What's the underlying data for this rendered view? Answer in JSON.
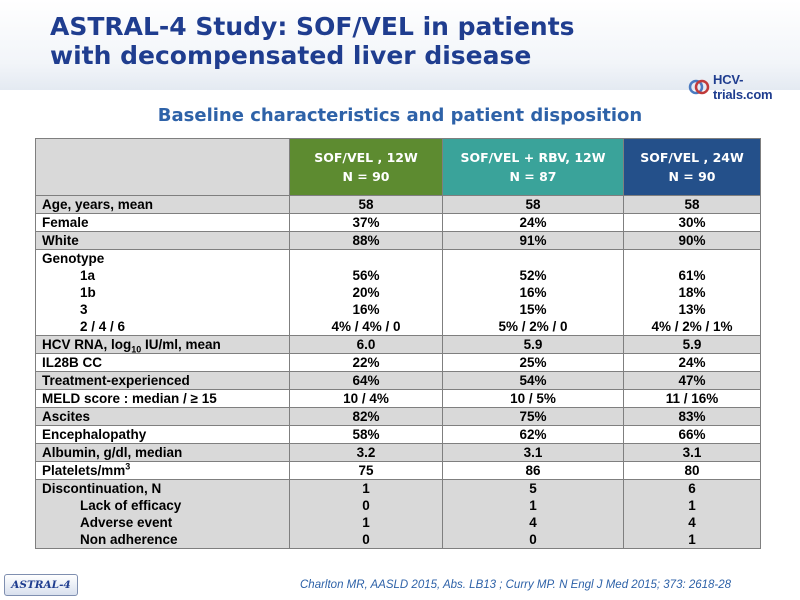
{
  "title": {
    "line1": "ASTRAL-4 Study: SOF/VEL in patients",
    "line2": "with decompensated liver disease"
  },
  "logo": {
    "text": "HCV-trials.com"
  },
  "subtitle": "Baseline characteristics and patient disposition",
  "table": {
    "headers": [
      {
        "line1": "SOF/VEL , 12W",
        "line2": "N = 90",
        "color": "#5d8b30"
      },
      {
        "line1": "SOF/VEL + RBV, 12W",
        "line2": "N = 87",
        "color": "#3aa39a"
      },
      {
        "line1": "SOF/VEL , 24W",
        "line2": "N = 90",
        "color": "#24508a"
      }
    ],
    "rows": {
      "age": {
        "label": "Age, years, mean",
        "values": [
          "58",
          "58",
          "58"
        ]
      },
      "female": {
        "label": "Female",
        "values": [
          "37%",
          "24%",
          "30%"
        ]
      },
      "white": {
        "label": "White",
        "values": [
          "88%",
          "91%",
          "90%"
        ]
      },
      "genotype": {
        "label": "Genotype",
        "sub": [
          "1a",
          "1b",
          "3",
          "2 / 4 / 6"
        ],
        "cols": [
          [
            "56%",
            "20%",
            "16%",
            "4% / 4% / 0"
          ],
          [
            "52%",
            "16%",
            "15%",
            "5% / 2% / 0"
          ],
          [
            "61%",
            "18%",
            "13%",
            "4% / 2% / 1%"
          ]
        ]
      },
      "hcv_rna": {
        "label_pre": "HCV RNA, log",
        "label_sub": "10",
        "label_post": " IU/ml, mean",
        "values": [
          "6.0",
          "5.9",
          "5.9"
        ]
      },
      "il28b": {
        "label": "IL28B CC",
        "values": [
          "22%",
          "25%",
          "24%"
        ]
      },
      "treatment": {
        "label": "Treatment-experienced",
        "values": [
          "64%",
          "54%",
          "47%"
        ]
      },
      "meld": {
        "label": "MELD score : median / ≥ 15",
        "values": [
          "10 / 4%",
          "10 / 5%",
          "11 / 16%"
        ]
      },
      "ascites": {
        "label": "Ascites",
        "values": [
          "82%",
          "75%",
          "83%"
        ]
      },
      "encephalopathy": {
        "label": "Encephalopathy",
        "values": [
          "58%",
          "62%",
          "66%"
        ]
      },
      "albumin": {
        "label": "Albumin, g/dl, median",
        "values": [
          "3.2",
          "3.1",
          "3.1"
        ]
      },
      "platelets": {
        "label_pre": "Platelets/mm",
        "label_sup": "3",
        "values": [
          "75",
          "86",
          "80"
        ]
      },
      "discontinuation": {
        "label": "Discontinuation, N",
        "sub": [
          "Lack of efficacy",
          "Adverse event",
          "Non adherence"
        ],
        "cols": [
          [
            "1",
            "0",
            "1",
            "0"
          ],
          [
            "5",
            "1",
            "4",
            "0"
          ],
          [
            "6",
            "1",
            "4",
            "1"
          ]
        ]
      }
    }
  },
  "footer": {
    "tag": "ASTRAL-4",
    "citation": "Charlton MR, AASLD 2015, Abs. LB13 ; Curry MP. N Engl J Med 2015; 373: 2618-28"
  }
}
